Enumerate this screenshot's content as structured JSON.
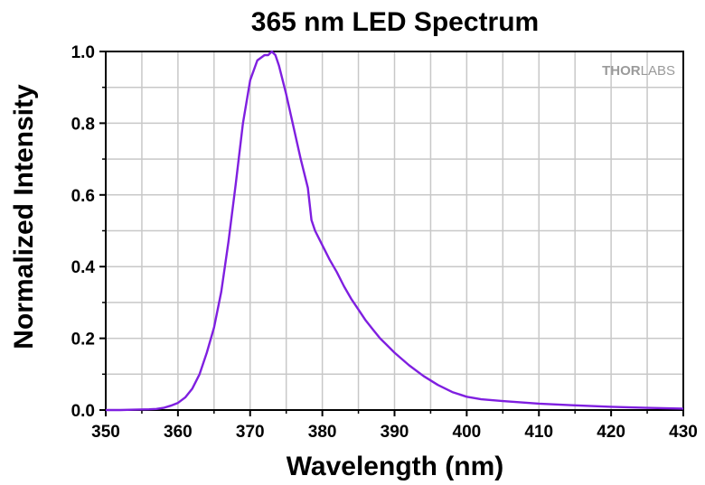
{
  "chart_data": {
    "type": "line",
    "title": "365 nm LED Spectrum",
    "xlabel": "Wavelength (nm)",
    "ylabel": "Normalized Intensity",
    "xlim": [
      350,
      430
    ],
    "ylim": [
      0,
      1.0
    ],
    "xticks": [
      "350",
      "360",
      "370",
      "380",
      "390",
      "400",
      "410",
      "420",
      "430"
    ],
    "yticks": [
      "0.0",
      "0.2",
      "0.4",
      "0.6",
      "0.8",
      "1.0"
    ],
    "grid": true,
    "line_color": "#7f1fe0",
    "watermark": {
      "bold": "THOR",
      "light": "LABS"
    },
    "series": [
      {
        "x": [
          350,
          352,
          354,
          356,
          357,
          358,
          359,
          360,
          361,
          362,
          363,
          364,
          365,
          366,
          367,
          368,
          369,
          370,
          371,
          372,
          372.5,
          373,
          373.5,
          374,
          375,
          376,
          377,
          378,
          378.5,
          379,
          380,
          381,
          382,
          383,
          384,
          385,
          386,
          387,
          388,
          389,
          390,
          392,
          394,
          396,
          398,
          400,
          402,
          405,
          410,
          415,
          420,
          425,
          430
        ],
        "y": [
          0.0,
          0.0,
          0.001,
          0.002,
          0.003,
          0.006,
          0.012,
          0.02,
          0.035,
          0.06,
          0.1,
          0.16,
          0.23,
          0.33,
          0.47,
          0.63,
          0.8,
          0.92,
          0.975,
          0.99,
          0.99,
          1.0,
          0.99,
          0.96,
          0.88,
          0.79,
          0.7,
          0.62,
          0.53,
          0.5,
          0.46,
          0.42,
          0.385,
          0.345,
          0.31,
          0.28,
          0.25,
          0.225,
          0.2,
          0.18,
          0.16,
          0.125,
          0.095,
          0.07,
          0.05,
          0.037,
          0.03,
          0.025,
          0.018,
          0.013,
          0.009,
          0.006,
          0.004
        ]
      }
    ]
  }
}
